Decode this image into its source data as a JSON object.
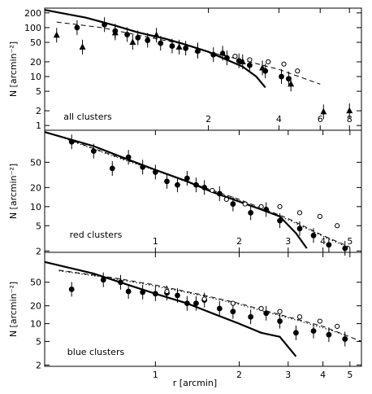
{
  "figure": {
    "xlabel": "r [arcmin]",
    "ylabel": "N [arcmin⁻²]"
  },
  "chart_data": [
    {
      "type": "scatter",
      "panel_label": "all clusters",
      "xscale": "log",
      "yscale": "log",
      "xlim": [
        0.4,
        9
      ],
      "ylim": [
        0.8,
        250
      ],
      "x_ticks": [
        "2",
        "4",
        "6",
        "8"
      ],
      "y_ticks": [
        "1",
        "2",
        "5",
        "10",
        "20",
        "50",
        "100",
        "200"
      ],
      "ylabel": "N [arcmin⁻²]",
      "series": [
        {
          "marker": "filled-circle",
          "x": [
            0.55,
            0.72,
            0.8,
            0.9,
            1.0,
            1.1,
            1.25,
            1.4,
            1.6,
            1.8,
            2.1,
            2.4,
            2.7,
            3.0,
            3.5,
            4.1,
            4.4
          ],
          "y": [
            100,
            115,
            85,
            72,
            62,
            55,
            48,
            42,
            38,
            33,
            28,
            24,
            21,
            17,
            13,
            10,
            9
          ]
        },
        {
          "marker": "open-circle",
          "x": [
            2.3,
            2.6,
            3.0,
            3.6,
            4.2,
            4.8
          ],
          "y": [
            30,
            26,
            22,
            20,
            18,
            13
          ]
        },
        {
          "marker": "filled-triangle",
          "x": [
            0.45,
            0.58,
            0.8,
            0.95,
            1.2,
            1.5,
            1.8,
            2.3,
            2.8,
            3.4,
            4.5,
            6.2,
            8.0
          ],
          "y": [
            70,
            40,
            78,
            50,
            70,
            40,
            35,
            30,
            20,
            15,
            7,
            1.9,
            2.0
          ]
        }
      ],
      "curves": [
        {
          "style": "solid",
          "x": [
            0.4,
            0.6,
            0.8,
            1.0,
            1.3,
            1.6,
            2.0,
            2.4,
            2.8,
            3.2,
            3.5
          ],
          "y": [
            230,
            160,
            110,
            80,
            60,
            45,
            32,
            22,
            16,
            10,
            6
          ]
        },
        {
          "style": "dashed",
          "x": [
            0.45,
            0.7,
            1.0,
            1.5,
            2.0,
            3.0,
            4.0,
            6.0
          ],
          "y": [
            130,
            100,
            70,
            48,
            32,
            20,
            14,
            7
          ]
        }
      ]
    },
    {
      "type": "scatter",
      "panel_label": "red clusters",
      "xscale": "log",
      "yscale": "log",
      "xlim": [
        0.4,
        5.5
      ],
      "ylim": [
        1.9,
        160
      ],
      "x_ticks": [
        "1",
        "2",
        "3",
        "4",
        "5"
      ],
      "y_ticks": [
        "2",
        "5",
        "10",
        "20",
        "50"
      ],
      "ylabel": "N [arcmin⁻²]",
      "series": [
        {
          "marker": "filled-circle",
          "x": [
            0.5,
            0.6,
            0.7,
            0.8,
            0.9,
            1.0,
            1.1,
            1.2,
            1.3,
            1.4,
            1.5,
            1.7,
            1.9,
            2.2,
            2.5,
            2.8,
            3.3,
            3.7,
            4.2,
            4.8
          ],
          "y": [
            105,
            75,
            40,
            60,
            42,
            35,
            25,
            22,
            28,
            22,
            20,
            16,
            11,
            8,
            9,
            6,
            4.5,
            3.5,
            2.5,
            2.2
          ]
        },
        {
          "marker": "open-circle",
          "x": [
            1.6,
            1.8,
            2.1,
            2.4,
            2.8,
            3.3,
            3.9,
            4.5
          ],
          "y": [
            18,
            13,
            11,
            10,
            10,
            8,
            7,
            5
          ]
        }
      ],
      "curves": [
        {
          "style": "solid",
          "x": [
            0.4,
            0.6,
            0.8,
            1.0,
            1.3,
            1.6,
            2.0,
            2.4,
            2.8,
            3.2,
            3.5
          ],
          "y": [
            150,
            90,
            55,
            38,
            25,
            17,
            12,
            9,
            7,
            3.8,
            2.2
          ]
        },
        {
          "style": "dashed",
          "x": [
            0.45,
            0.7,
            1.0,
            1.5,
            2.0,
            3.0,
            4.0,
            5.0
          ],
          "y": [
            130,
            65,
            38,
            20,
            13,
            6.5,
            3.5,
            2.3
          ]
        },
        {
          "style": "dotted",
          "x": [
            0.45,
            0.7,
            1.0,
            1.5,
            2.0,
            3.0,
            4.0,
            5.0
          ],
          "y": [
            128,
            63,
            37,
            19.5,
            12.5,
            6.2,
            3.4,
            2.2
          ]
        }
      ]
    },
    {
      "type": "scatter",
      "panel_label": "blue clusters",
      "xscale": "log",
      "yscale": "log",
      "xlim": [
        0.4,
        5.5
      ],
      "ylim": [
        1.9,
        160
      ],
      "x_ticks": [
        "1",
        "2",
        "3",
        "4",
        "5"
      ],
      "y_ticks": [
        "2",
        "5",
        "10",
        "20",
        "50"
      ],
      "ylabel": "N [arcmin⁻²]",
      "series": [
        {
          "marker": "filled-circle",
          "x": [
            0.5,
            0.65,
            0.75,
            0.8,
            0.9,
            1.0,
            1.1,
            1.2,
            1.3,
            1.4,
            1.5,
            1.7,
            1.9,
            2.2,
            2.5,
            2.8,
            3.2,
            3.7,
            4.2,
            4.8
          ],
          "y": [
            38,
            55,
            50,
            35,
            34,
            32,
            33,
            30,
            22,
            22,
            25,
            18,
            16,
            13,
            15,
            11,
            7,
            7.5,
            6.5,
            5.5
          ]
        },
        {
          "marker": "open-circle",
          "x": [
            1.1,
            1.5,
            1.9,
            2.4,
            2.8,
            3.3,
            3.9,
            4.5
          ],
          "y": [
            35,
            26,
            22,
            18,
            16,
            13,
            11,
            9
          ]
        }
      ],
      "curves": [
        {
          "style": "solid",
          "x": [
            0.4,
            0.6,
            0.8,
            1.0,
            1.3,
            1.6,
            2.0,
            2.4,
            2.8,
            3.2
          ],
          "y": [
            110,
            70,
            45,
            32,
            22,
            15,
            10,
            7,
            6,
            2.8
          ]
        },
        {
          "style": "dashed",
          "x": [
            0.45,
            0.7,
            1.0,
            1.5,
            2.0,
            3.0,
            4.0,
            5.5
          ],
          "y": [
            80,
            60,
            45,
            30,
            22,
            13,
            9,
            5
          ]
        },
        {
          "style": "dotted",
          "x": [
            0.45,
            0.7,
            1.0,
            1.5,
            2.0,
            3.0,
            4.0,
            5.0
          ],
          "y": [
            78,
            58,
            43,
            29,
            21,
            12.5,
            8.5,
            6
          ]
        }
      ]
    }
  ]
}
